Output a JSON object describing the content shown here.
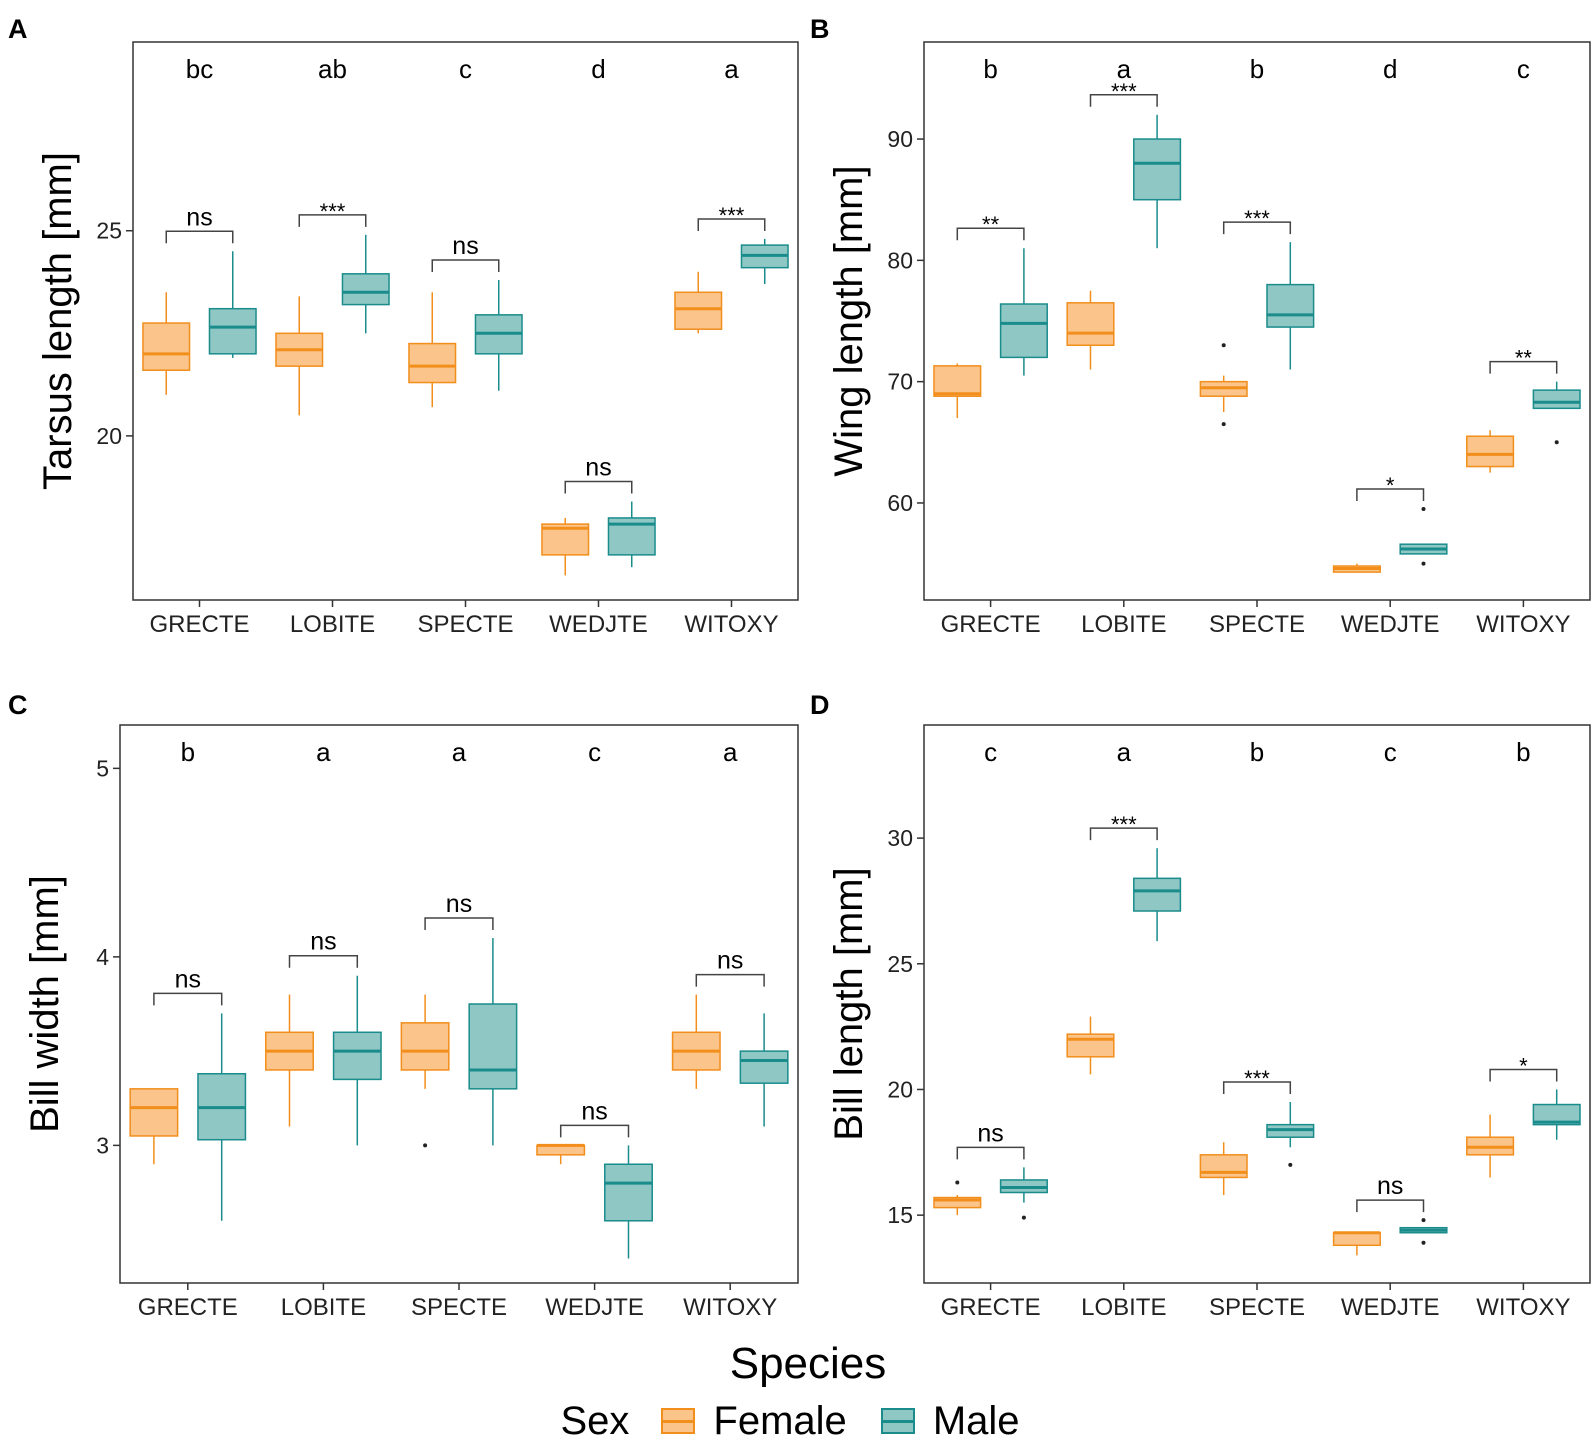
{
  "colors": {
    "female_line": "#f28e1c",
    "female_fill": "#fbc48a",
    "male_line": "#1a8c8c",
    "male_fill": "#8fc7c4"
  },
  "xlabel": "Species",
  "legend": {
    "title": "Sex",
    "female": "Female",
    "male": "Male"
  },
  "chart_data": [
    {
      "panel": "A",
      "type": "boxplot",
      "ylabel": "Tarsus length [mm]",
      "ylim": [
        16,
        29.6
      ],
      "yticks": [
        20,
        25
      ],
      "categories": [
        "GRECTE",
        "LOBITE",
        "SPECTE",
        "WEDJTE",
        "WITOXY"
      ],
      "group_letters": [
        "bc",
        "ab",
        "c",
        "d",
        "a"
      ],
      "significance": [
        "ns",
        "***",
        "ns",
        "ns",
        "***"
      ],
      "series": [
        {
          "name": "Female",
          "boxes": [
            {
              "min": 21.0,
              "q1": 21.6,
              "median": 22.0,
              "q3": 22.75,
              "max": 23.5,
              "outliers": []
            },
            {
              "min": 20.5,
              "q1": 21.7,
              "median": 22.1,
              "q3": 22.5,
              "max": 23.4,
              "outliers": []
            },
            {
              "min": 20.7,
              "q1": 21.3,
              "median": 21.7,
              "q3": 22.25,
              "max": 23.5,
              "outliers": []
            },
            {
              "min": 16.6,
              "q1": 17.1,
              "median": 17.75,
              "q3": 17.85,
              "max": 18.0,
              "outliers": []
            },
            {
              "min": 22.5,
              "q1": 22.6,
              "median": 23.1,
              "q3": 23.5,
              "max": 24.0,
              "outliers": []
            }
          ]
        },
        {
          "name": "Male",
          "boxes": [
            {
              "min": 21.9,
              "q1": 22.0,
              "median": 22.65,
              "q3": 23.1,
              "max": 24.5,
              "outliers": []
            },
            {
              "min": 22.5,
              "q1": 23.2,
              "median": 23.5,
              "q3": 23.95,
              "max": 24.9,
              "outliers": []
            },
            {
              "min": 21.1,
              "q1": 22.0,
              "median": 22.5,
              "q3": 22.95,
              "max": 23.8,
              "outliers": []
            },
            {
              "min": 16.8,
              "q1": 17.1,
              "median": 17.85,
              "q3": 18.0,
              "max": 18.4,
              "outliers": []
            },
            {
              "min": 23.7,
              "q1": 24.1,
              "median": 24.4,
              "q3": 24.65,
              "max": 24.8,
              "outliers": []
            }
          ]
        }
      ]
    },
    {
      "panel": "B",
      "type": "boxplot",
      "ylabel": "Wing length [mm]",
      "ylim": [
        52,
        98
      ],
      "yticks": [
        60,
        70,
        80,
        90
      ],
      "categories": [
        "GRECTE",
        "LOBITE",
        "SPECTE",
        "WEDJTE",
        "WITOXY"
      ],
      "group_letters": [
        "b",
        "a",
        "b",
        "d",
        "c"
      ],
      "significance": [
        "**",
        "***",
        "***",
        "*",
        "**"
      ],
      "series": [
        {
          "name": "Female",
          "boxes": [
            {
              "min": 67.0,
              "q1": 68.8,
              "median": 69.0,
              "q3": 71.3,
              "max": 71.5,
              "outliers": []
            },
            {
              "min": 71.0,
              "q1": 73.0,
              "median": 74.0,
              "q3": 76.5,
              "max": 77.5,
              "outliers": []
            },
            {
              "min": 67.5,
              "q1": 68.8,
              "median": 69.5,
              "q3": 70.0,
              "max": 70.5,
              "outliers": [
                73.0,
                66.5
              ]
            },
            {
              "min": 54.3,
              "q1": 54.3,
              "median": 54.6,
              "q3": 54.8,
              "max": 55.0,
              "outliers": []
            },
            {
              "min": 62.5,
              "q1": 63.0,
              "median": 64.0,
              "q3": 65.5,
              "max": 66.0,
              "outliers": []
            }
          ]
        },
        {
          "name": "Male",
          "boxes": [
            {
              "min": 70.5,
              "q1": 72.0,
              "median": 74.8,
              "q3": 76.4,
              "max": 81.0,
              "outliers": []
            },
            {
              "min": 81.0,
              "q1": 85.0,
              "median": 88.0,
              "q3": 90.0,
              "max": 92.0,
              "outliers": []
            },
            {
              "min": 71.0,
              "q1": 74.5,
              "median": 75.5,
              "q3": 78.0,
              "max": 81.5,
              "outliers": []
            },
            {
              "min": 55.8,
              "q1": 55.8,
              "median": 56.2,
              "q3": 56.6,
              "max": 56.6,
              "outliers": [
                59.5,
                55.0
              ]
            },
            {
              "min": 67.8,
              "q1": 67.8,
              "median": 68.3,
              "q3": 69.3,
              "max": 70.0,
              "outliers": [
                65.0
              ]
            }
          ]
        }
      ]
    },
    {
      "panel": "C",
      "type": "boxplot",
      "ylabel": "Bill width [mm]",
      "ylim": [
        2.27,
        5.23
      ],
      "yticks": [
        3,
        4,
        5
      ],
      "categories": [
        "GRECTE",
        "LOBITE",
        "SPECTE",
        "WEDJTE",
        "WITOXY"
      ],
      "group_letters": [
        "b",
        "a",
        "a",
        "c",
        "a"
      ],
      "significance": [
        "ns",
        "ns",
        "ns",
        "ns",
        "ns"
      ],
      "series": [
        {
          "name": "Female",
          "boxes": [
            {
              "min": 2.9,
              "q1": 3.05,
              "median": 3.2,
              "q3": 3.3,
              "max": 3.3,
              "outliers": []
            },
            {
              "min": 3.1,
              "q1": 3.4,
              "median": 3.5,
              "q3": 3.6,
              "max": 3.8,
              "outliers": []
            },
            {
              "min": 3.3,
              "q1": 3.4,
              "median": 3.5,
              "q3": 3.65,
              "max": 3.8,
              "outliers": [
                3.0
              ]
            },
            {
              "min": 2.9,
              "q1": 2.95,
              "median": 3.0,
              "q3": 3.0,
              "max": 3.0,
              "outliers": []
            },
            {
              "min": 3.3,
              "q1": 3.4,
              "median": 3.5,
              "q3": 3.6,
              "max": 3.8,
              "outliers": []
            }
          ]
        },
        {
          "name": "Male",
          "boxes": [
            {
              "min": 2.6,
              "q1": 3.03,
              "median": 3.2,
              "q3": 3.38,
              "max": 3.7,
              "outliers": []
            },
            {
              "min": 3.0,
              "q1": 3.35,
              "median": 3.5,
              "q3": 3.6,
              "max": 3.9,
              "outliers": []
            },
            {
              "min": 3.0,
              "q1": 3.3,
              "median": 3.4,
              "q3": 3.75,
              "max": 4.1,
              "outliers": []
            },
            {
              "min": 2.4,
              "q1": 2.6,
              "median": 2.8,
              "q3": 2.9,
              "max": 3.0,
              "outliers": []
            },
            {
              "min": 3.1,
              "q1": 3.33,
              "median": 3.45,
              "q3": 3.5,
              "max": 3.7,
              "outliers": []
            }
          ]
        }
      ]
    },
    {
      "panel": "D",
      "type": "boxplot",
      "ylabel": "Bill length [mm]",
      "ylim": [
        12.3,
        34.5
      ],
      "yticks": [
        15,
        20,
        25,
        30
      ],
      "categories": [
        "GRECTE",
        "LOBITE",
        "SPECTE",
        "WEDJTE",
        "WITOXY"
      ],
      "group_letters": [
        "c",
        "a",
        "b",
        "c",
        "b"
      ],
      "significance": [
        "ns",
        "***",
        "***",
        "ns",
        "*"
      ],
      "series": [
        {
          "name": "Female",
          "boxes": [
            {
              "min": 15.0,
              "q1": 15.3,
              "median": 15.6,
              "q3": 15.7,
              "max": 15.8,
              "outliers": [
                16.3
              ]
            },
            {
              "min": 20.6,
              "q1": 21.3,
              "median": 22.0,
              "q3": 22.2,
              "max": 22.9,
              "outliers": []
            },
            {
              "min": 15.8,
              "q1": 16.5,
              "median": 16.7,
              "q3": 17.4,
              "max": 17.9,
              "outliers": []
            },
            {
              "min": 13.4,
              "q1": 13.8,
              "median": 14.3,
              "q3": 14.3,
              "max": 14.3,
              "outliers": []
            },
            {
              "min": 16.5,
              "q1": 17.4,
              "median": 17.7,
              "q3": 18.1,
              "max": 19.0,
              "outliers": []
            }
          ]
        },
        {
          "name": "Male",
          "boxes": [
            {
              "min": 15.5,
              "q1": 15.9,
              "median": 16.1,
              "q3": 16.4,
              "max": 16.9,
              "outliers": [
                14.9
              ]
            },
            {
              "min": 25.9,
              "q1": 27.1,
              "median": 27.9,
              "q3": 28.4,
              "max": 29.6,
              "outliers": []
            },
            {
              "min": 17.7,
              "q1": 18.1,
              "median": 18.4,
              "q3": 18.6,
              "max": 19.5,
              "outliers": [
                17.0
              ]
            },
            {
              "min": 14.3,
              "q1": 14.3,
              "median": 14.4,
              "q3": 14.5,
              "max": 14.5,
              "outliers": [
                14.8,
                13.9
              ]
            },
            {
              "min": 18.0,
              "q1": 18.6,
              "median": 18.7,
              "q3": 19.4,
              "max": 20.0,
              "outliers": []
            }
          ]
        }
      ]
    }
  ]
}
